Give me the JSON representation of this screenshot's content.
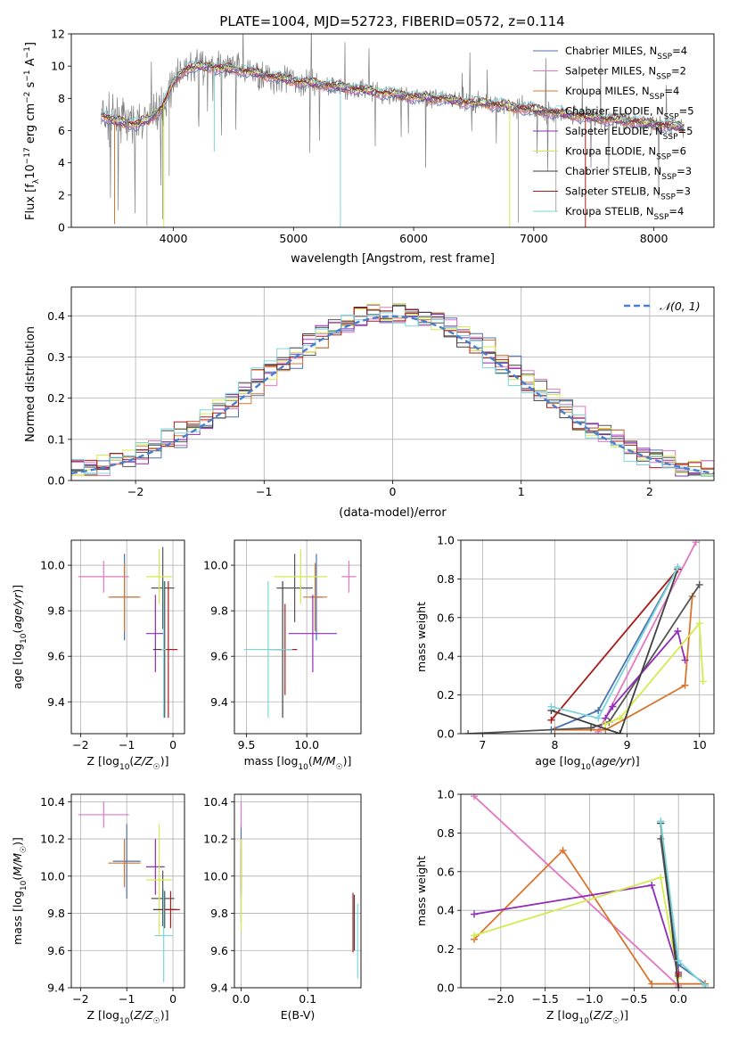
{
  "figure_title": "PLATE=1004, MJD=52723, FIBERID=0572, z=0.114",
  "colors": {
    "Chabrier MILES": "#4c72b0",
    "Salpeter MILES": "#e377c2",
    "Kroupa MILES": "#d9752b",
    "Chabrier ELODIE": "#555555",
    "Salpeter ELODIE": "#8f2cb8",
    "Kroupa ELODIE": "#d4ea4e",
    "Chabrier STELIB": "#3f3f3f",
    "Salpeter STELIB": "#a81c1c",
    "Kroupa STELIB": "#7ad6dc",
    "data": "#808080",
    "normal": "#4a7fd0",
    "grid": "#b0b0b0"
  },
  "chart_data": [
    {
      "id": "spectrum",
      "type": "line",
      "title": "PLATE=1004, MJD=52723, FIBERID=0572, z=0.114",
      "xlabel": "wavelength [Angstrom, rest frame]",
      "ylabel": "Flux [f_λ 10^-17 erg cm^-2 s^-1 A^-1]",
      "xlim": [
        3150,
        8500
      ],
      "ylim": [
        0,
        12
      ],
      "xticks": [
        4000,
        5000,
        6000,
        7000,
        8000
      ],
      "yticks": [
        0,
        2,
        4,
        6,
        8,
        10,
        12
      ],
      "grid": false,
      "legend_position": "top-right",
      "continuum": {
        "x": [
          3400,
          3500,
          3600,
          3700,
          3800,
          3900,
          4000,
          4100,
          4200,
          4400,
          4600,
          4800,
          5000,
          5200,
          5400,
          5600,
          5800,
          6000,
          6200,
          6400,
          6600,
          6800,
          7000,
          7200,
          7400,
          7600,
          7800,
          8000,
          8250
        ],
        "y": [
          7.0,
          6.6,
          6.5,
          6.4,
          6.7,
          7.4,
          9.0,
          9.8,
          10.0,
          9.9,
          9.7,
          9.4,
          9.1,
          8.9,
          8.7,
          8.5,
          8.3,
          8.1,
          8.0,
          7.8,
          7.7,
          7.5,
          7.3,
          7.1,
          6.9,
          6.7,
          6.6,
          6.4,
          6.2
        ]
      },
      "models": [
        {
          "name": "Chabrier MILES",
          "subscript": "SSP",
          "n": 4
        },
        {
          "name": "Salpeter MILES",
          "subscript": "SSP",
          "n": 2
        },
        {
          "name": "Kroupa MILES",
          "subscript": "SSP",
          "n": 4
        },
        {
          "name": "Chabrier ELODIE",
          "subscript": "SSP",
          "n": 5
        },
        {
          "name": "Salpeter ELODIE",
          "subscript": "SSP",
          "n": 5
        },
        {
          "name": "Kroupa ELODIE",
          "subscript": "SSP",
          "n": 6
        },
        {
          "name": "Chabrier STELIB",
          "subscript": "SSP",
          "n": 3
        },
        {
          "name": "Salpeter STELIB",
          "subscript": "SSP",
          "n": 3
        },
        {
          "name": "Kroupa STELIB",
          "subscript": "SSP",
          "n": 4
        }
      ]
    },
    {
      "id": "residuals",
      "type": "histogram",
      "xlabel": "(data-model)/error",
      "ylabel": "Normed distribution",
      "xlim": [
        -2.5,
        2.5
      ],
      "ylim": [
        0,
        0.47
      ],
      "xticks": [
        -2,
        -1,
        0,
        1,
        2
      ],
      "yticks": [
        0.0,
        0.1,
        0.2,
        0.3,
        0.4
      ],
      "grid": true,
      "legend": "𝒩(0, 1)",
      "legend_position": "top-right",
      "bin_width": 0.1,
      "bin_start": -2.5
    },
    {
      "id": "age-vs-Z",
      "type": "scatter",
      "xlabel": "Z [log10(Z/Z☉)]",
      "ylabel": "age [log10(age/yr)]",
      "xlim": [
        -2.2,
        0.25
      ],
      "ylim": [
        9.26,
        10.11
      ],
      "xticks": [
        -2,
        -1,
        0
      ],
      "yticks": [
        9.4,
        9.6,
        9.8,
        10.0
      ],
      "grid": true,
      "points": [
        {
          "model": "Chabrier MILES",
          "x": -1.05,
          "y": 9.86,
          "xerr": 0.3,
          "yerr": 0.19
        },
        {
          "model": "Salpeter MILES",
          "x": -1.5,
          "y": 9.95,
          "xerr": 0.55,
          "yerr": 0.07
        },
        {
          "model": "Kroupa MILES",
          "x": -1.05,
          "y": 9.86,
          "xerr": 0.35,
          "yerr": 0.15
        },
        {
          "model": "Chabrier ELODIE",
          "x": -0.22,
          "y": 9.9,
          "xerr": 0.25,
          "yerr": 0.18
        },
        {
          "model": "Salpeter ELODIE",
          "x": -0.38,
          "y": 9.7,
          "xerr": 0.2,
          "yerr": 0.17
        },
        {
          "model": "Kroupa ELODIE",
          "x": -0.3,
          "y": 9.95,
          "xerr": 0.28,
          "yerr": 0.12
        },
        {
          "model": "Chabrier STELIB",
          "x": -0.18,
          "y": 9.63,
          "xerr": 0.25,
          "yerr": 0.3
        },
        {
          "model": "Salpeter STELIB",
          "x": -0.1,
          "y": 9.63,
          "xerr": 0.2,
          "yerr": 0.3
        },
        {
          "model": "Kroupa STELIB",
          "x": -0.2,
          "y": 9.63,
          "xerr": 0.05,
          "yerr": 0.3
        }
      ]
    },
    {
      "id": "age-vs-mass",
      "type": "scatter",
      "xlabel": "mass [log10(M/M☉)]",
      "ylabel": "",
      "xlim": [
        9.4,
        10.45
      ],
      "ylim": [
        9.26,
        10.11
      ],
      "xticks": [
        9.5,
        10.0
      ],
      "yticks": [
        9.4,
        9.6,
        9.8,
        10.0
      ],
      "grid": true,
      "points": [
        {
          "model": "Chabrier MILES",
          "x": 10.08,
          "y": 9.86,
          "xerr": 0.05,
          "yerr": 0.19
        },
        {
          "model": "Salpeter MILES",
          "x": 10.35,
          "y": 9.95,
          "xerr": 0.06,
          "yerr": 0.07
        },
        {
          "model": "Kroupa MILES",
          "x": 10.07,
          "y": 9.86,
          "xerr": 0.1,
          "yerr": 0.15
        },
        {
          "model": "Chabrier ELODIE",
          "x": 9.9,
          "y": 9.9,
          "xerr": 0.15,
          "yerr": 0.15
        },
        {
          "model": "Salpeter ELODIE",
          "x": 10.05,
          "y": 9.7,
          "xerr": 0.2,
          "yerr": 0.17
        },
        {
          "model": "Kroupa ELODIE",
          "x": 9.95,
          "y": 9.95,
          "xerr": 0.22,
          "yerr": 0.12
        },
        {
          "model": "Chabrier STELIB",
          "x": 9.8,
          "y": 9.63,
          "xerr": 0.12,
          "yerr": 0.3
        },
        {
          "model": "Salpeter STELIB",
          "x": 9.82,
          "y": 9.63,
          "xerr": 0.1,
          "yerr": 0.2
        },
        {
          "model": "Kroupa STELIB",
          "x": 9.68,
          "y": 9.63,
          "xerr": 0.2,
          "yerr": 0.3
        }
      ]
    },
    {
      "id": "weight-vs-age",
      "type": "line",
      "xlabel": "age [log10(age/yr)]",
      "ylabel": "mass weight",
      "xlim": [
        6.7,
        10.2
      ],
      "ylim": [
        0,
        1
      ],
      "xticks": [
        7,
        8,
        9,
        10
      ],
      "yticks": [
        0.0,
        0.2,
        0.4,
        0.6,
        0.8,
        1.0
      ],
      "grid": true,
      "series": [
        {
          "model": "Chabrier MILES",
          "x": [
            7.95,
            8.6,
            9.7
          ],
          "y": [
            0.02,
            0.12,
            0.86
          ]
        },
        {
          "model": "Salpeter MILES",
          "x": [
            8.6,
            9.95
          ],
          "y": [
            0.01,
            0.99
          ]
        },
        {
          "model": "Kroupa MILES",
          "x": [
            8.0,
            8.7,
            9.8,
            9.9
          ],
          "y": [
            0.02,
            0.02,
            0.25,
            0.71
          ]
        },
        {
          "model": "Chabrier ELODIE",
          "x": [
            6.8,
            8.5,
            8.75,
            10.0
          ],
          "y": [
            0.0,
            0.03,
            0.06,
            0.77
          ]
        },
        {
          "model": "Salpeter ELODIE",
          "x": [
            8.7,
            8.8,
            9.7,
            9.8
          ],
          "y": [
            0.08,
            0.14,
            0.53,
            0.38
          ]
        },
        {
          "model": "Kroupa ELODIE",
          "x": [
            8.7,
            8.9,
            10.0,
            10.05
          ],
          "y": [
            0.05,
            0.08,
            0.57,
            0.27
          ]
        },
        {
          "model": "Chabrier STELIB",
          "x": [
            7.95,
            8.9,
            9.7
          ],
          "y": [
            0.12,
            0.0,
            0.85
          ]
        },
        {
          "model": "Salpeter STELIB",
          "x": [
            7.95,
            9.7
          ],
          "y": [
            0.07,
            0.85
          ]
        },
        {
          "model": "Kroupa STELIB",
          "x": [
            7.95,
            8.6,
            9.7
          ],
          "y": [
            0.14,
            0.08,
            0.86
          ]
        }
      ]
    },
    {
      "id": "mass-vs-Z",
      "type": "scatter",
      "xlabel": "Z [log10(Z/Z☉)]",
      "ylabel": "mass [log10(M/M☉)]",
      "xlim": [
        -2.2,
        0.25
      ],
      "ylim": [
        9.4,
        10.44
      ],
      "xticks": [
        -2,
        -1,
        0
      ],
      "yticks": [
        9.4,
        9.6,
        9.8,
        10.0,
        10.2,
        10.4
      ],
      "grid": true,
      "points": [
        {
          "model": "Chabrier MILES",
          "x": -1.0,
          "y": 10.08,
          "xerr": 0.3,
          "yerr": 0.2
        },
        {
          "model": "Salpeter MILES",
          "x": -1.5,
          "y": 10.33,
          "xerr": 0.55,
          "yerr": 0.07
        },
        {
          "model": "Kroupa MILES",
          "x": -1.05,
          "y": 10.07,
          "xerr": 0.35,
          "yerr": 0.13
        },
        {
          "model": "Chabrier ELODIE",
          "x": -0.22,
          "y": 9.88,
          "xerr": 0.25,
          "yerr": 0.15
        },
        {
          "model": "Salpeter ELODIE",
          "x": -0.38,
          "y": 10.05,
          "xerr": 0.2,
          "yerr": 0.15
        },
        {
          "model": "Kroupa ELODIE",
          "x": -0.3,
          "y": 9.98,
          "xerr": 0.28,
          "yerr": 0.3
        },
        {
          "model": "Chabrier STELIB",
          "x": -0.18,
          "y": 9.82,
          "xerr": 0.25,
          "yerr": 0.1
        },
        {
          "model": "Salpeter STELIB",
          "x": -0.05,
          "y": 9.82,
          "xerr": 0.2,
          "yerr": 0.1
        },
        {
          "model": "Kroupa STELIB",
          "x": -0.2,
          "y": 9.68,
          "xerr": 0.2,
          "yerr": 0.25
        }
      ]
    },
    {
      "id": "mass-vs-ebv",
      "type": "scatter",
      "xlabel": "E(B-V)",
      "ylabel": "",
      "xlim": [
        -0.01,
        0.18
      ],
      "ylim": [
        9.4,
        10.44
      ],
      "xticks": [
        0.0,
        0.1
      ],
      "yticks": [
        9.4,
        9.6,
        9.8,
        10.0,
        10.2,
        10.4
      ],
      "grid": true,
      "points": [
        {
          "model": "Chabrier MILES",
          "x": 0.0,
          "y": 10.08,
          "xerr": 0.0,
          "yerr": 0.2
        },
        {
          "model": "Salpeter MILES",
          "x": 0.0,
          "y": 10.33,
          "xerr": 0.0,
          "yerr": 0.07
        },
        {
          "model": "Kroupa MILES",
          "x": 0.0,
          "y": 10.07,
          "xerr": 0.0,
          "yerr": 0.13
        },
        {
          "model": "Chabrier ELODIE",
          "x": 0.0,
          "y": 9.95,
          "xerr": 0.0,
          "yerr": 0.2
        },
        {
          "model": "Salpeter ELODIE",
          "x": 0.0,
          "y": 10.05,
          "xerr": 0.0,
          "yerr": 0.15
        },
        {
          "model": "Kroupa ELODIE",
          "x": 0.0,
          "y": 9.95,
          "xerr": 0.0,
          "yerr": 0.25
        },
        {
          "model": "Chabrier STELIB",
          "x": 0.17,
          "y": 9.75,
          "xerr": 0.0,
          "yerr": 0.15
        },
        {
          "model": "Salpeter STELIB",
          "x": 0.168,
          "y": 9.75,
          "xerr": 0.0,
          "yerr": 0.16
        },
        {
          "model": "Kroupa STELIB",
          "x": 0.175,
          "y": 9.65,
          "xerr": 0.0,
          "yerr": 0.2
        }
      ]
    },
    {
      "id": "weight-vs-Z",
      "type": "line",
      "xlabel": "Z [log10(Z/Z☉)]",
      "ylabel": "mass weight",
      "xlim": [
        -2.45,
        0.4
      ],
      "ylim": [
        0,
        1
      ],
      "xticks": [
        -2.0,
        -1.5,
        -1.0,
        -0.5,
        0.0
      ],
      "yticks": [
        0.0,
        0.2,
        0.4,
        0.6,
        0.8,
        1.0
      ],
      "grid": true,
      "series": [
        {
          "model": "Chabrier MILES",
          "x": [
            -0.2,
            0.0,
            0.3
          ],
          "y": [
            0.86,
            0.12,
            0.02
          ]
        },
        {
          "model": "Salpeter MILES",
          "x": [
            -2.3,
            0.0
          ],
          "y": [
            0.99,
            0.01
          ]
        },
        {
          "model": "Kroupa MILES",
          "x": [
            -2.3,
            -1.3,
            -0.3,
            0.3
          ],
          "y": [
            0.25,
            0.71,
            0.02,
            0.02
          ]
        },
        {
          "model": "Chabrier ELODIE",
          "x": [
            -0.2,
            0.0
          ],
          "y": [
            0.77,
            0.06
          ]
        },
        {
          "model": "Salpeter ELODIE",
          "x": [
            -2.3,
            -0.3,
            0.0
          ],
          "y": [
            0.38,
            0.53,
            0.08
          ]
        },
        {
          "model": "Kroupa ELODIE",
          "x": [
            -2.3,
            -0.2,
            0.0
          ],
          "y": [
            0.27,
            0.57,
            0.05
          ]
        },
        {
          "model": "Chabrier STELIB",
          "x": [
            -0.2,
            0.0
          ],
          "y": [
            0.85,
            0.0
          ]
        },
        {
          "model": "Salpeter STELIB",
          "x": [
            0.0
          ],
          "y": [
            0.07
          ]
        },
        {
          "model": "Kroupa STELIB",
          "x": [
            -0.2,
            0.0,
            0.3
          ],
          "y": [
            0.86,
            0.14,
            0.01
          ]
        }
      ]
    }
  ]
}
